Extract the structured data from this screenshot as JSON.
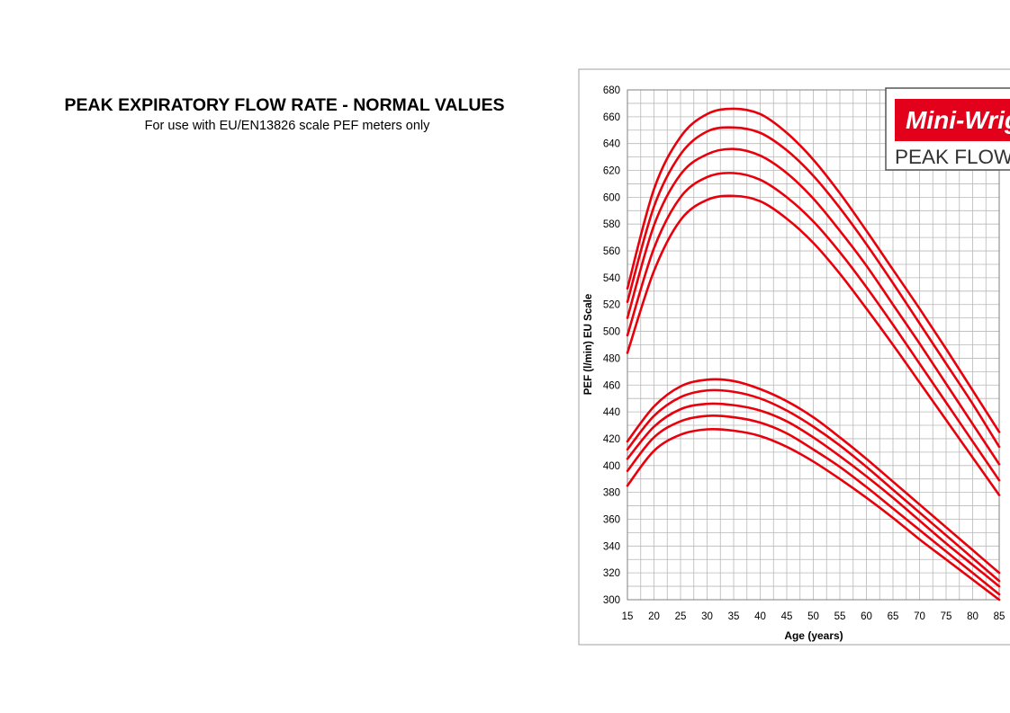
{
  "page": {
    "title": "PEAK EXPIRATORY FLOW RATE - NORMAL VALUES",
    "subtitle": "For use with EU/EN13826 scale PEF meters only"
  },
  "logo": {
    "brand_text": "Mini-Wright",
    "caption_text": "PEAK FLOW METER",
    "brand_color": "#e3001b"
  },
  "chart_data": {
    "type": "line",
    "xlabel": "Age (years)",
    "ylabel": "PEF (l/min) EU Scale",
    "xlim": [
      15,
      85
    ],
    "ylim": [
      300,
      680
    ],
    "x_ticks": [
      15,
      20,
      25,
      30,
      35,
      40,
      45,
      50,
      55,
      60,
      65,
      70,
      75,
      80,
      85
    ],
    "y_ticks": [
      300,
      320,
      340,
      360,
      380,
      400,
      420,
      440,
      460,
      480,
      500,
      520,
      540,
      560,
      580,
      600,
      620,
      640,
      660,
      680
    ],
    "grid": true,
    "line_color": "#e8000b",
    "x": [
      15,
      20,
      25,
      30,
      35,
      40,
      45,
      50,
      55,
      60,
      65,
      70,
      75,
      80,
      85
    ],
    "series": [
      {
        "values": [
          532,
          606,
          645,
          662,
          666,
          662,
          648,
          628,
          603,
          575,
          546,
          517,
          487,
          456,
          425
        ]
      },
      {
        "values": [
          522,
          593,
          632,
          649,
          652,
          648,
          635,
          616,
          592,
          565,
          536,
          506,
          476,
          446,
          414
        ]
      },
      {
        "values": [
          510,
          579,
          617,
          632,
          636,
          631,
          618,
          599,
          575,
          549,
          520,
          491,
          461,
          431,
          401
        ]
      },
      {
        "values": [
          497,
          562,
          600,
          615,
          618,
          613,
          600,
          582,
          559,
          533,
          505,
          476,
          447,
          418,
          389
        ]
      },
      {
        "values": [
          484,
          545,
          583,
          598,
          601,
          597,
          584,
          566,
          543,
          517,
          490,
          462,
          434,
          406,
          378
        ]
      },
      {
        "values": [
          418,
          444,
          459,
          464,
          463,
          457,
          448,
          436,
          421,
          405,
          388,
          371,
          354,
          337,
          320
        ]
      },
      {
        "values": [
          412,
          437,
          451,
          456,
          455,
          450,
          441,
          429,
          415,
          399,
          382,
          365,
          348,
          331,
          314
        ]
      },
      {
        "values": [
          405,
          429,
          442,
          446,
          445,
          441,
          433,
          421,
          407,
          392,
          376,
          359,
          342,
          326,
          310
        ]
      },
      {
        "values": [
          396,
          421,
          433,
          437,
          436,
          432,
          424,
          412,
          399,
          384,
          368,
          352,
          336,
          320,
          304
        ]
      },
      {
        "values": [
          385,
          411,
          423,
          427,
          426,
          422,
          414,
          403,
          390,
          376,
          361,
          345,
          330,
          315,
          300
        ]
      }
    ]
  }
}
